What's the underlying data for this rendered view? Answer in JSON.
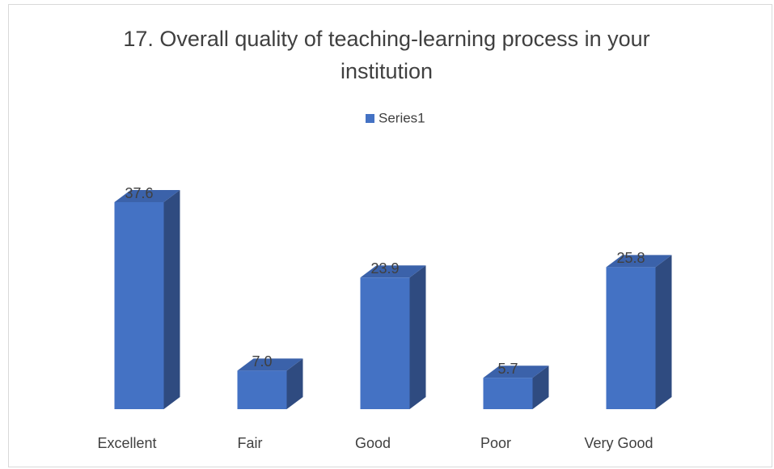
{
  "chart_data": {
    "type": "bar3d",
    "title": "17. Overall quality of teaching-learning process in your institution",
    "categories": [
      "Excellent",
      "Fair",
      "Good",
      "Poor",
      "Very Good"
    ],
    "series": [
      {
        "name": "Series1",
        "color": "#4472c4",
        "values": [
          37.6,
          7.0,
          23.9,
          5.7,
          25.8
        ],
        "value_labels": [
          "37.6",
          "7.0",
          "23.9",
          "5.7",
          "25.8"
        ]
      }
    ],
    "legend": "top"
  }
}
